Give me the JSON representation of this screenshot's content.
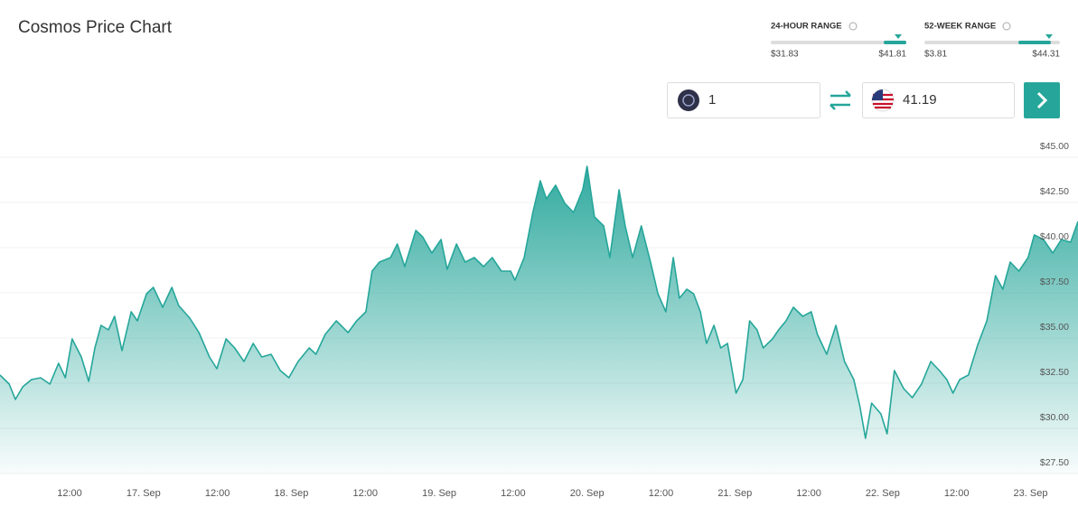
{
  "header": {
    "title": "Cosmos Price Chart"
  },
  "ranges": [
    {
      "label": "24-HOUR RANGE",
      "low": "$31.83",
      "high": "$41.81"
    },
    {
      "label": "52-WEEK RANGE",
      "low": "$3.81",
      "high": "$44.31"
    }
  ],
  "converter": {
    "from_amount": "1",
    "to_amount": "41.19"
  },
  "chart_data": {
    "type": "area",
    "color": "#26a69a",
    "grid": true,
    "x": [
      0.7,
      2.2,
      3.2,
      4.4,
      5.8,
      7.3,
      8.8,
      10.2,
      11.3,
      12.4,
      13.9,
      15.1,
      16.1,
      17.1,
      18.3,
      19.3,
      20.5,
      22.0,
      23.0,
      24.5,
      25.6,
      27.1,
      28.6,
      29.7,
      31.5,
      33.0,
      34.7,
      35.9,
      37.4,
      38.8,
      40.3,
      41.8,
      43.2,
      44.7,
      46.2,
      47.6,
      49.1,
      50.9,
      52.0,
      53.5,
      55.3,
      57.2,
      58.6,
      60.1,
      61.1,
      62.3,
      64.1,
      65.2,
      66.4,
      68.2,
      69.3,
      70.8,
      72.3,
      73.3,
      74.8,
      76.2,
      77.7,
      79.2,
      80.6,
      82.1,
      83.6,
      84.3,
      85.8,
      87.2,
      88.4,
      89.4,
      90.9,
      92.4,
      93.8,
      95.3,
      96.0,
      97.2,
      98.7,
      99.7,
      101.2,
      102.2,
      103.4,
      104.8,
      106.3,
      107.5,
      108.8,
      110.0,
      111.0,
      112.2,
      113.3,
      114.4,
      115.4,
      116.6,
      117.7,
      118.8,
      120.2,
      121.3,
      122.4,
      123.6,
      124.6,
      126.1,
      127.1,
      128.3,
      129.5,
      131.0,
      132.4,
      133.4,
      134.9,
      136.4,
      137.8,
      139.3,
      140.3,
      141.2,
      142.2,
      143.7,
      144.7,
      145.9,
      147.4,
      148.8,
      150.3,
      151.8,
      153.2,
      154.4,
      155.4,
      156.5,
      157.9,
      159.4,
      160.9,
      162.3,
      163.5,
      164.7,
      166.1,
      167.6,
      168.6,
      170.1,
      171.6,
      173.0,
      174.5,
      175.7
    ],
    "values": [
      32.95,
      32.45,
      31.6,
      32.3,
      32.7,
      32.8,
      32.45,
      33.6,
      32.8,
      34.95,
      33.95,
      32.6,
      34.45,
      35.7,
      35.45,
      36.2,
      34.3,
      36.45,
      35.95,
      37.45,
      37.8,
      36.7,
      37.8,
      36.8,
      36.1,
      35.3,
      33.95,
      33.3,
      34.95,
      34.45,
      33.7,
      34.7,
      33.95,
      34.1,
      33.2,
      32.8,
      33.7,
      34.45,
      34.1,
      35.2,
      35.95,
      35.3,
      35.95,
      36.45,
      38.7,
      39.2,
      39.45,
      40.2,
      38.95,
      40.95,
      40.6,
      39.7,
      40.45,
      38.8,
      40.2,
      39.2,
      39.45,
      38.95,
      39.45,
      38.7,
      38.7,
      38.2,
      39.45,
      41.95,
      43.7,
      42.7,
      43.45,
      42.45,
      41.95,
      43.2,
      44.5,
      41.7,
      41.2,
      39.45,
      43.2,
      41.2,
      39.45,
      41.2,
      39.2,
      37.45,
      36.45,
      39.45,
      37.2,
      37.7,
      37.45,
      36.45,
      34.7,
      35.7,
      34.45,
      34.7,
      31.95,
      32.7,
      35.95,
      35.45,
      34.45,
      34.95,
      35.45,
      35.95,
      36.7,
      36.2,
      36.45,
      35.2,
      34.1,
      35.7,
      33.7,
      32.7,
      31.2,
      29.45,
      31.4,
      30.8,
      29.7,
      33.2,
      32.2,
      31.7,
      32.45,
      33.7,
      33.2,
      32.7,
      31.95,
      32.7,
      32.95,
      34.6,
      35.95,
      38.45,
      37.7,
      39.2,
      38.7,
      39.45,
      40.7,
      40.45,
      39.7,
      40.45,
      40.3,
      41.45
    ],
    "xlim": [
      0.7,
      175.7
    ],
    "xticks": [
      {
        "value": 12,
        "label": "12:00"
      },
      {
        "value": 24,
        "label": "17. Sep"
      },
      {
        "value": 36,
        "label": "12:00"
      },
      {
        "value": 48,
        "label": "18. Sep"
      },
      {
        "value": 60,
        "label": "12:00"
      },
      {
        "value": 72,
        "label": "19. Sep"
      },
      {
        "value": 84,
        "label": "12:00"
      },
      {
        "value": 96,
        "label": "20. Sep"
      },
      {
        "value": 108,
        "label": "12:00"
      },
      {
        "value": 120,
        "label": "21. Sep"
      },
      {
        "value": 132,
        "label": "12:00"
      },
      {
        "value": 144,
        "label": "22. Sep"
      },
      {
        "value": 156,
        "label": "12:00"
      },
      {
        "value": 168,
        "label": "23. Sep"
      }
    ],
    "ylim": [
      27.5,
      46.2
    ],
    "yticks": [
      {
        "value": 27.5,
        "label": "$27.50"
      },
      {
        "value": 30,
        "label": "$30.00"
      },
      {
        "value": 32.5,
        "label": "$32.50"
      },
      {
        "value": 35,
        "label": "$35.00"
      },
      {
        "value": 37.5,
        "label": "$37.50"
      },
      {
        "value": 40,
        "label": "$40.00"
      },
      {
        "value": 42.5,
        "label": "$42.50"
      },
      {
        "value": 45,
        "label": "$45.00"
      }
    ]
  }
}
